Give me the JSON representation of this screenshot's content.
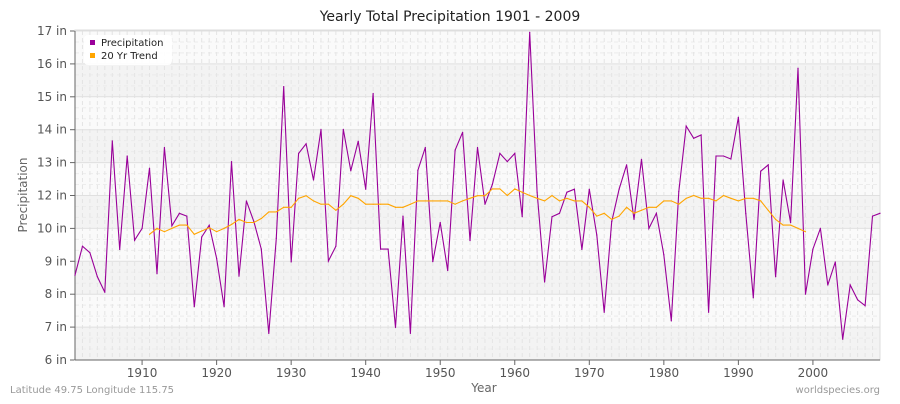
{
  "chart_data": {
    "type": "line",
    "title": "Yearly Total Precipitation 1901 - 2009",
    "xlabel": "Year",
    "ylabel": "Precipitation",
    "xlim": [
      1901,
      2009
    ],
    "ylim": [
      6,
      17
    ],
    "x_ticks": [
      1910,
      1920,
      1930,
      1940,
      1950,
      1960,
      1970,
      1980,
      1990,
      2000
    ],
    "y_ticks": [
      {
        "value": 17,
        "label": "17 in"
      },
      {
        "value": 16,
        "label": "16 in"
      },
      {
        "value": 15,
        "label": "15 in"
      },
      {
        "value": 14,
        "label": "14 in"
      },
      {
        "value": 13,
        "label": "13 in"
      },
      {
        "value": 12,
        "label": "12 in"
      },
      {
        "value": 10,
        "label": "10 in"
      },
      {
        "value": 9,
        "label": "9 in"
      },
      {
        "value": 8,
        "label": "8 in"
      },
      {
        "value": 7,
        "label": "7 in"
      },
      {
        "value": 6,
        "label": "6 in"
      }
    ],
    "grid": true,
    "legend_position": "top-left",
    "series": [
      {
        "name": "Precipitation",
        "color": "#990099",
        "x_start": 1901,
        "values": [
          8.58,
          9.46,
          9.26,
          8.53,
          8.06,
          13.66,
          9.36,
          13.2,
          9.64,
          10.0,
          12.83,
          8.62,
          13.46,
          10.16,
          10.92,
          10.75,
          7.62,
          9.74,
          10.19,
          9.09,
          7.62,
          13.03,
          8.55,
          11.67,
          10.41,
          9.37,
          6.81,
          9.7,
          15.31,
          8.98,
          13.28,
          13.57,
          12.47,
          14.01,
          9.01,
          9.46,
          14.01,
          12.75,
          13.65,
          12.19,
          15.1,
          9.37,
          9.37,
          6.99,
          10.75,
          6.81,
          12.77,
          13.46,
          8.99,
          10.36,
          8.72,
          13.38,
          13.92,
          9.63,
          13.46,
          11.47,
          12.34,
          13.28,
          13.03,
          13.28,
          10.71,
          16.96,
          12.1,
          8.37,
          10.71,
          10.92,
          12.1,
          12.19,
          9.36,
          12.19,
          9.8,
          7.45,
          10.41,
          12.19,
          12.93,
          10.55,
          13.1,
          10.0,
          10.92,
          9.2,
          7.19,
          12.12,
          14.11,
          13.74,
          13.84,
          7.45,
          13.2,
          13.2,
          13.11,
          14.38,
          10.9,
          7.89,
          12.74,
          12.93,
          8.53,
          12.47,
          10.35,
          15.87,
          8.0,
          9.37,
          10.0,
          8.28,
          8.98,
          6.63,
          8.28,
          7.83,
          7.65,
          10.75,
          10.92
        ]
      },
      {
        "name": "20 Yr Trend",
        "color": "#ffa500",
        "x_start": 1911,
        "values": [
          9.82,
          10.0,
          9.9,
          10.0,
          10.2,
          10.2,
          9.82,
          9.92,
          10.04,
          9.9,
          10.0,
          10.24,
          10.55,
          10.36,
          10.36,
          10.6,
          11.0,
          11.0,
          11.28,
          11.28,
          11.83,
          11.99,
          11.67,
          11.47,
          11.47,
          11.1,
          11.47,
          11.99,
          11.83,
          11.47,
          11.47,
          11.47,
          11.47,
          11.28,
          11.28,
          11.47,
          11.67,
          11.67,
          11.67,
          11.67,
          11.67,
          11.47,
          11.67,
          11.83,
          11.99,
          11.99,
          12.2,
          12.2,
          12.0,
          12.2,
          12.1,
          12.0,
          11.83,
          11.67,
          12.0,
          11.67,
          11.83,
          11.67,
          11.67,
          11.28,
          10.75,
          10.92,
          10.55,
          10.75,
          11.28,
          10.92,
          11.1,
          11.28,
          11.28,
          11.67,
          11.67,
          11.47,
          11.83,
          12.0,
          11.83,
          11.83,
          11.67,
          12.0,
          11.83,
          11.67,
          11.83,
          11.83,
          11.67,
          11.1,
          10.55,
          10.2,
          10.2,
          10.0,
          9.9
        ]
      }
    ]
  },
  "footer": {
    "location": "Latitude 49.75 Longitude 115.75",
    "site": "worldspecies.org"
  }
}
